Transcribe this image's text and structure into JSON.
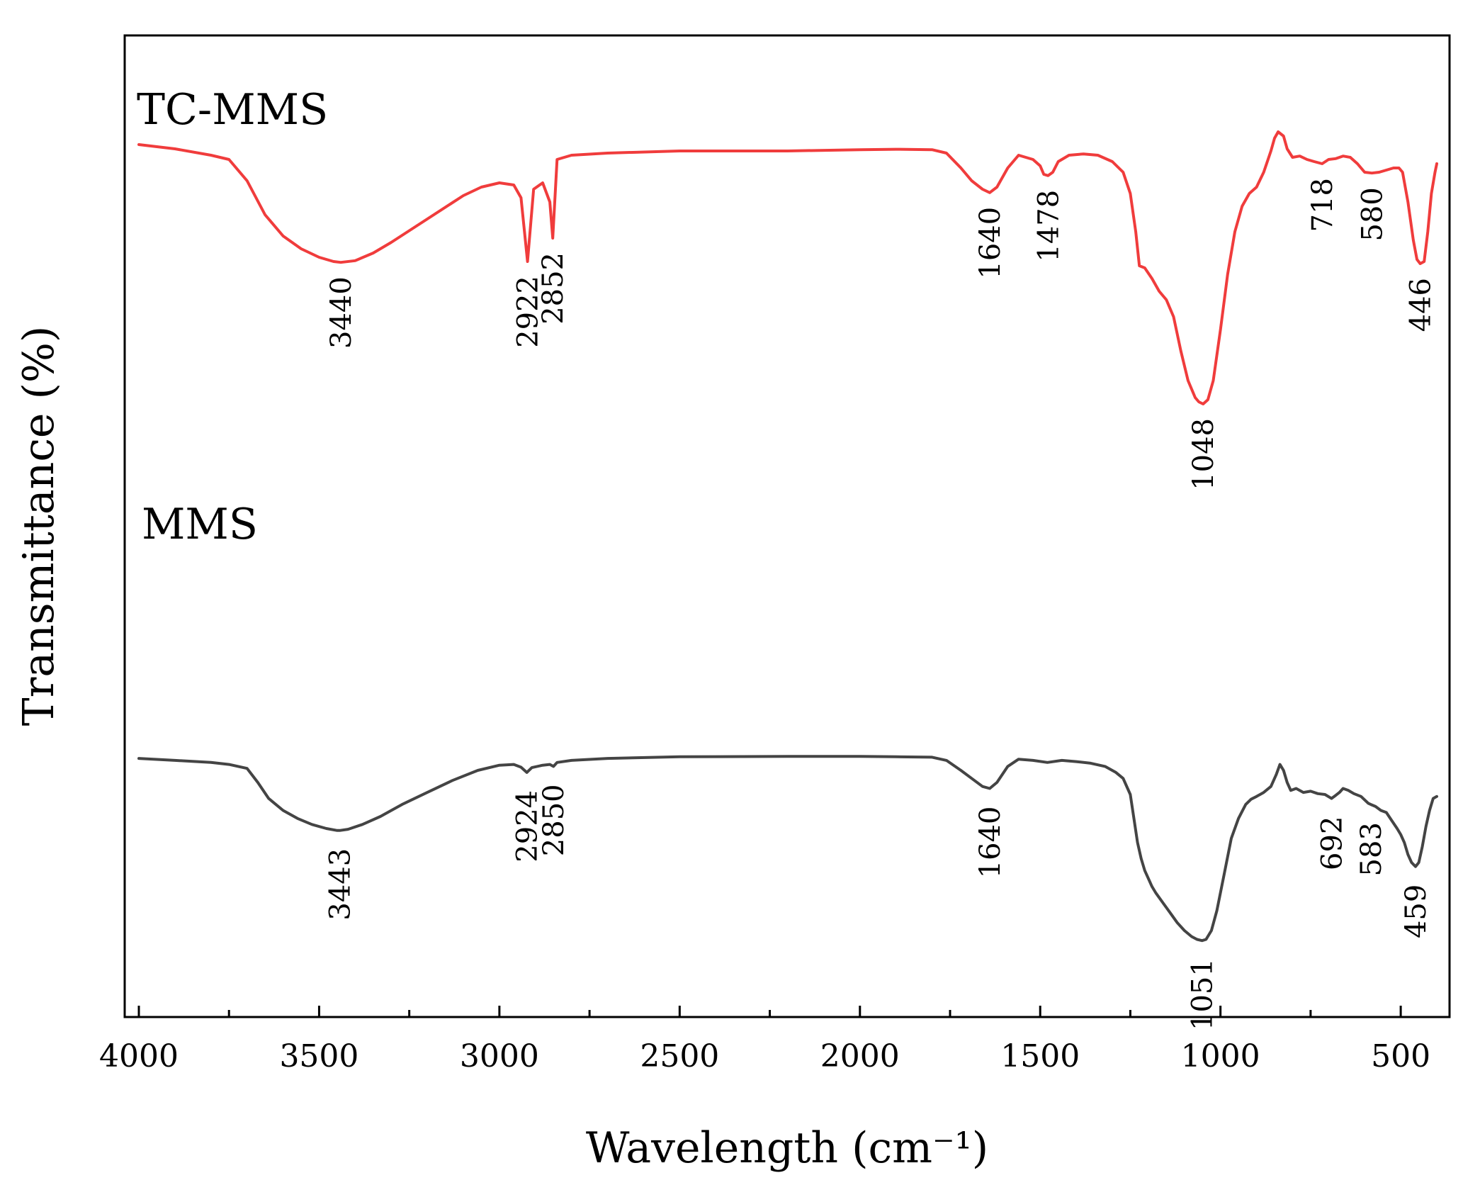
{
  "chart_data": {
    "type": "line",
    "title": "",
    "xlabel": "Wavelength (cm⁻¹)",
    "ylabel": "Transmittance (%)",
    "xlim": [
      4000,
      400
    ],
    "x_reversed": true,
    "ylim": [
      0,
      100
    ],
    "y_ticks_shown": false,
    "xticks": [
      "4000",
      "3500",
      "3000",
      "2500",
      "2000",
      "1500",
      "1000",
      "500"
    ],
    "grid": false,
    "series": [
      {
        "name": "TC-MMS",
        "color": "#f03c3c",
        "x": [
          4000,
          3900,
          3800,
          3750,
          3700,
          3650,
          3600,
          3550,
          3500,
          3460,
          3440,
          3400,
          3350,
          3300,
          3200,
          3100,
          3050,
          3000,
          2960,
          2940,
          2922,
          2905,
          2880,
          2860,
          2852,
          2840,
          2800,
          2700,
          2500,
          2200,
          2000,
          1900,
          1800,
          1760,
          1720,
          1690,
          1660,
          1640,
          1620,
          1590,
          1560,
          1520,
          1500,
          1490,
          1478,
          1465,
          1450,
          1420,
          1380,
          1340,
          1300,
          1270,
          1250,
          1235,
          1225,
          1210,
          1190,
          1170,
          1150,
          1130,
          1110,
          1090,
          1070,
          1060,
          1048,
          1035,
          1020,
          1000,
          980,
          960,
          940,
          920,
          900,
          880,
          860,
          850,
          840,
          825,
          815,
          800,
          780,
          760,
          740,
          718,
          700,
          680,
          660,
          640,
          620,
          600,
          580,
          560,
          540,
          520,
          505,
          495,
          480,
          465,
          455,
          446,
          435,
          425,
          415,
          405,
          400
        ],
        "y": [
          88.5,
          87.5,
          86.0,
          85.0,
          80.0,
          72.0,
          67.0,
          64.0,
          62.0,
          61.0,
          60.8,
          61.2,
          63.0,
          65.5,
          71.0,
          76.5,
          78.5,
          79.5,
          79.0,
          76.0,
          61.0,
          78.0,
          79.5,
          75.0,
          66.5,
          85.0,
          86.0,
          86.5,
          87.0,
          87.0,
          87.3,
          87.4,
          87.3,
          86.5,
          83.0,
          80.0,
          78.0,
          77.2,
          78.5,
          83.0,
          86.0,
          85.0,
          83.5,
          81.5,
          81.2,
          82.0,
          84.5,
          86.0,
          86.3,
          86.0,
          84.5,
          82.0,
          77.0,
          68.0,
          60.0,
          59.5,
          57.0,
          54.0,
          52.0,
          48.0,
          40.0,
          33.0,
          29.0,
          28.0,
          27.5,
          28.5,
          33.0,
          45.0,
          58.0,
          68.0,
          74.0,
          77.0,
          78.5,
          82.0,
          87.0,
          90.0,
          91.5,
          90.5,
          87.5,
          85.5,
          85.8,
          85.0,
          84.5,
          84.0,
          85.0,
          85.2,
          85.8,
          85.5,
          84.0,
          82.0,
          81.8,
          82.0,
          82.5,
          83.0,
          83.0,
          82.0,
          75.0,
          66.0,
          61.5,
          60.5,
          61.0,
          68.0,
          77.0,
          82.0,
          84.0
        ]
      },
      {
        "name": "MMS",
        "color": "#444444",
        "x": [
          4000,
          3900,
          3800,
          3750,
          3700,
          3670,
          3640,
          3600,
          3560,
          3520,
          3480,
          3450,
          3443,
          3420,
          3380,
          3330,
          3270,
          3200,
          3130,
          3060,
          3000,
          2960,
          2940,
          2924,
          2910,
          2880,
          2860,
          2850,
          2840,
          2800,
          2700,
          2500,
          2200,
          2000,
          1900,
          1800,
          1760,
          1720,
          1690,
          1660,
          1640,
          1620,
          1590,
          1560,
          1520,
          1480,
          1440,
          1400,
          1360,
          1320,
          1290,
          1270,
          1250,
          1240,
          1230,
          1220,
          1210,
          1200,
          1190,
          1180,
          1160,
          1140,
          1120,
          1100,
          1080,
          1065,
          1051,
          1040,
          1025,
          1010,
          990,
          970,
          950,
          930,
          915,
          900,
          880,
          860,
          845,
          835,
          825,
          815,
          805,
          790,
          770,
          750,
          730,
          710,
          692,
          680,
          670,
          660,
          645,
          630,
          610,
          590,
          583,
          570,
          555,
          540,
          525,
          510,
          500,
          490,
          480,
          470,
          459,
          450,
          440,
          430,
          420,
          410,
          400
        ],
        "y": [
          46.0,
          45.5,
          45.0,
          44.5,
          43.5,
          40.0,
          36.0,
          33.0,
          31.0,
          29.5,
          28.5,
          28.0,
          28.0,
          28.3,
          29.5,
          31.5,
          34.5,
          37.5,
          40.5,
          43.0,
          44.3,
          44.5,
          43.8,
          42.5,
          43.7,
          44.3,
          44.5,
          44.0,
          45.0,
          45.5,
          46.0,
          46.4,
          46.5,
          46.5,
          46.4,
          46.3,
          45.5,
          43.0,
          41.0,
          39.0,
          38.5,
          40.0,
          44.0,
          45.8,
          45.5,
          45.0,
          45.5,
          45.2,
          44.8,
          44.0,
          42.5,
          41.0,
          37.0,
          31.0,
          25.0,
          21.0,
          18.0,
          16.0,
          14.0,
          12.5,
          10.0,
          7.5,
          5.0,
          3.0,
          1.5,
          0.8,
          0.5,
          0.8,
          3.0,
          8.0,
          17.0,
          26.0,
          31.0,
          34.5,
          35.8,
          36.5,
          37.5,
          39.0,
          42.0,
          44.5,
          43.0,
          40.0,
          38.0,
          38.5,
          37.5,
          37.8,
          37.2,
          37.0,
          36.0,
          36.8,
          37.5,
          38.5,
          38.0,
          37.2,
          36.5,
          34.8,
          34.5,
          34.0,
          33.0,
          32.5,
          30.5,
          28.5,
          27.0,
          25.0,
          22.0,
          20.0,
          19.0,
          20.0,
          24.0,
          29.0,
          33.0,
          36.0,
          36.5
        ]
      }
    ],
    "annotations": [
      {
        "series": "TC-MMS",
        "text": "3440",
        "x": 3440
      },
      {
        "series": "TC-MMS",
        "text": "2922",
        "x": 2922
      },
      {
        "series": "TC-MMS",
        "text": "2852",
        "x": 2852
      },
      {
        "series": "TC-MMS",
        "text": "1640",
        "x": 1640
      },
      {
        "series": "TC-MMS",
        "text": "1478",
        "x": 1478
      },
      {
        "series": "TC-MMS",
        "text": "1048",
        "x": 1048
      },
      {
        "series": "TC-MMS",
        "text": "718",
        "x": 718
      },
      {
        "series": "TC-MMS",
        "text": "580",
        "x": 580
      },
      {
        "series": "TC-MMS",
        "text": "446",
        "x": 446
      },
      {
        "series": "MMS",
        "text": "3443",
        "x": 3443
      },
      {
        "series": "MMS",
        "text": "2924",
        "x": 2924
      },
      {
        "series": "MMS",
        "text": "2850",
        "x": 2850
      },
      {
        "series": "MMS",
        "text": "1640",
        "x": 1640
      },
      {
        "series": "MMS",
        "text": "1051",
        "x": 1051
      },
      {
        "series": "MMS",
        "text": "692",
        "x": 692
      },
      {
        "series": "MMS",
        "text": "583",
        "x": 583
      },
      {
        "series": "MMS",
        "text": "459",
        "x": 459
      }
    ]
  }
}
